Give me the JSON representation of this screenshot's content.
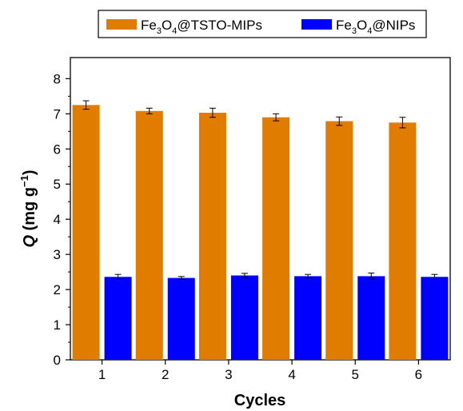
{
  "chart_data": {
    "type": "bar",
    "categories": [
      "1",
      "2",
      "3",
      "4",
      "5",
      "6"
    ],
    "series": [
      {
        "name_main": "Fe",
        "name_sub1": "3",
        "name_mid": "O",
        "name_sub2": "4",
        "name_tail": "@TSTO-MIPs",
        "values": [
          7.25,
          7.08,
          7.03,
          6.9,
          6.79,
          6.75
        ],
        "errors": [
          0.12,
          0.08,
          0.13,
          0.1,
          0.12,
          0.15
        ],
        "color": "#e07c00"
      },
      {
        "name_main": "Fe",
        "name_sub1": "3",
        "name_mid": "O",
        "name_sub2": "4",
        "name_tail": "@NIPs",
        "values": [
          2.36,
          2.33,
          2.4,
          2.38,
          2.38,
          2.36
        ],
        "errors": [
          0.07,
          0.04,
          0.06,
          0.05,
          0.09,
          0.07
        ],
        "color": "#0000ff"
      }
    ],
    "xlabel": "Cycles",
    "ylabel_q": "Q",
    "ylabel_rest": " (mg g",
    "ylabel_sup": "−1",
    "ylabel_close": ")",
    "ylim": [
      0,
      8.6
    ],
    "yticks": [
      "0",
      "1",
      "2",
      "3",
      "4",
      "5",
      "6",
      "7",
      "8"
    ],
    "grid": false,
    "legend_position": "top"
  }
}
